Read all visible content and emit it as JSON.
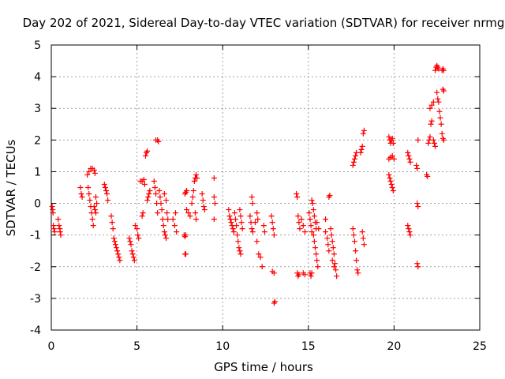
{
  "chart_data": {
    "type": "scatter",
    "title": "Day 202 of 2021, Sidereal Day-to-day VTEC variation (SDTVAR) for receiver nrmg",
    "xlabel": "GPS time / hours",
    "ylabel": "SDTVAR / TECUs",
    "xlim": [
      0,
      25
    ],
    "ylim": [
      -4,
      5
    ],
    "xticks": [
      0,
      5,
      10,
      15,
      20,
      25
    ],
    "yticks": [
      -4,
      -3,
      -2,
      -1,
      0,
      1,
      2,
      3,
      4,
      5
    ],
    "xtick_labels": [
      "0",
      "5",
      "10",
      "15",
      "20",
      "25"
    ],
    "ytick_labels": [
      "-4",
      "-3",
      "-2",
      "-1",
      "0",
      "1",
      "2",
      "3",
      "4",
      "5"
    ],
    "grid": true,
    "marker": "+",
    "series": [
      {
        "name": "SDTVAR",
        "color": "#ff0000",
        "points": [
          [
            0.05,
            -0.1
          ],
          [
            0.08,
            -0.2
          ],
          [
            0.1,
            -0.3
          ],
          [
            0.12,
            -0.7
          ],
          [
            0.15,
            -0.8
          ],
          [
            0.2,
            -0.9
          ],
          [
            0.4,
            -0.5
          ],
          [
            0.45,
            -0.7
          ],
          [
            0.5,
            -0.8
          ],
          [
            0.52,
            -0.9
          ],
          [
            0.55,
            -1.0
          ],
          [
            1.7,
            0.5
          ],
          [
            1.75,
            0.3
          ],
          [
            1.8,
            0.2
          ],
          [
            2.1,
            0.9
          ],
          [
            2.2,
            1.0
          ],
          [
            2.3,
            1.1
          ],
          [
            2.4,
            1.1
          ],
          [
            2.5,
            1.05
          ],
          [
            2.55,
            0.95
          ],
          [
            2.15,
            0.5
          ],
          [
            2.2,
            0.3
          ],
          [
            2.25,
            0.1
          ],
          [
            2.3,
            -0.1
          ],
          [
            2.35,
            -0.3
          ],
          [
            2.4,
            -0.5
          ],
          [
            2.45,
            -0.7
          ],
          [
            2.5,
            -0.1
          ],
          [
            2.55,
            -0.2
          ],
          [
            2.6,
            -0.3
          ],
          [
            2.65,
            0.0
          ],
          [
            2.6,
            0.2
          ],
          [
            3.1,
            0.6
          ],
          [
            3.15,
            0.5
          ],
          [
            3.2,
            0.4
          ],
          [
            3.25,
            0.3
          ],
          [
            3.3,
            0.1
          ],
          [
            3.5,
            -0.4
          ],
          [
            3.55,
            -0.6
          ],
          [
            3.6,
            -0.8
          ],
          [
            3.65,
            -1.1
          ],
          [
            3.7,
            -1.2
          ],
          [
            3.75,
            -1.3
          ],
          [
            3.8,
            -1.4
          ],
          [
            3.85,
            -1.5
          ],
          [
            3.9,
            -1.6
          ],
          [
            3.95,
            -1.7
          ],
          [
            4.0,
            -1.8
          ],
          [
            4.55,
            -1.1
          ],
          [
            4.6,
            -1.2
          ],
          [
            4.65,
            -1.3
          ],
          [
            4.7,
            -1.5
          ],
          [
            4.75,
            -1.6
          ],
          [
            4.8,
            -1.7
          ],
          [
            4.85,
            -1.8
          ],
          [
            4.9,
            -0.7
          ],
          [
            5.0,
            -0.8
          ],
          [
            5.05,
            -1.0
          ],
          [
            5.1,
            -1.1
          ],
          [
            5.2,
            0.7
          ],
          [
            5.3,
            0.7
          ],
          [
            5.4,
            0.75
          ],
          [
            5.45,
            0.6
          ],
          [
            5.3,
            -0.4
          ],
          [
            5.35,
            -0.3
          ],
          [
            5.5,
            1.5
          ],
          [
            5.55,
            1.6
          ],
          [
            5.6,
            1.65
          ],
          [
            5.6,
            0.1
          ],
          [
            5.65,
            0.2
          ],
          [
            5.7,
            0.3
          ],
          [
            5.75,
            0.4
          ],
          [
            6.1,
            2.0
          ],
          [
            6.2,
            2.0
          ],
          [
            6.25,
            1.95
          ],
          [
            6.0,
            0.7
          ],
          [
            6.05,
            0.5
          ],
          [
            6.1,
            0.3
          ],
          [
            6.15,
            0.0
          ],
          [
            6.2,
            -0.3
          ],
          [
            6.3,
            0.4
          ],
          [
            6.35,
            0.2
          ],
          [
            6.4,
            0.0
          ],
          [
            6.45,
            -0.2
          ],
          [
            6.5,
            -0.5
          ],
          [
            6.55,
            -0.7
          ],
          [
            6.6,
            -0.9
          ],
          [
            6.65,
            -1.0
          ],
          [
            6.7,
            -1.1
          ],
          [
            6.6,
            0.3
          ],
          [
            6.7,
            0.1
          ],
          [
            6.75,
            -0.3
          ],
          [
            6.8,
            -0.5
          ],
          [
            7.1,
            -0.5
          ],
          [
            7.2,
            -0.7
          ],
          [
            7.25,
            -0.3
          ],
          [
            7.3,
            -0.9
          ],
          [
            7.8,
            0.3
          ],
          [
            7.85,
            0.35
          ],
          [
            7.9,
            0.4
          ],
          [
            7.75,
            -1.0
          ],
          [
            7.8,
            -1.05
          ],
          [
            7.85,
            -1.0
          ],
          [
            7.8,
            -1.6
          ],
          [
            7.85,
            -1.6
          ],
          [
            7.9,
            -0.2
          ],
          [
            8.0,
            -0.3
          ],
          [
            8.1,
            -0.4
          ],
          [
            8.2,
            0.0
          ],
          [
            8.25,
            0.2
          ],
          [
            8.3,
            0.4
          ],
          [
            8.35,
            0.7
          ],
          [
            8.4,
            0.8
          ],
          [
            8.45,
            0.9
          ],
          [
            8.5,
            0.8
          ],
          [
            8.4,
            -0.3
          ],
          [
            8.45,
            -0.5
          ],
          [
            8.8,
            0.3
          ],
          [
            8.85,
            0.1
          ],
          [
            8.9,
            -0.1
          ],
          [
            8.95,
            -0.2
          ],
          [
            9.5,
            0.8
          ],
          [
            9.5,
            0.2
          ],
          [
            9.55,
            0.0
          ],
          [
            9.5,
            -0.5
          ],
          [
            10.35,
            -0.2
          ],
          [
            10.4,
            -0.4
          ],
          [
            10.45,
            -0.5
          ],
          [
            10.5,
            -0.6
          ],
          [
            10.55,
            -0.7
          ],
          [
            10.6,
            -0.8
          ],
          [
            10.65,
            -0.9
          ],
          [
            10.7,
            -0.3
          ],
          [
            10.75,
            -0.5
          ],
          [
            10.8,
            -0.7
          ],
          [
            10.85,
            -1.0
          ],
          [
            10.9,
            -1.2
          ],
          [
            10.95,
            -1.4
          ],
          [
            11.0,
            -1.5
          ],
          [
            11.05,
            -1.6
          ],
          [
            11.0,
            -0.2
          ],
          [
            11.05,
            -0.4
          ],
          [
            11.1,
            -0.6
          ],
          [
            11.15,
            -0.8
          ],
          [
            11.6,
            -0.4
          ],
          [
            11.65,
            -0.6
          ],
          [
            11.7,
            -0.8
          ],
          [
            11.75,
            -0.9
          ],
          [
            11.7,
            0.2
          ],
          [
            11.75,
            0.0
          ],
          [
            11.9,
            -0.6
          ],
          [
            12.0,
            -1.2
          ],
          [
            12.0,
            -0.3
          ],
          [
            12.05,
            -0.5
          ],
          [
            12.1,
            -1.6
          ],
          [
            12.2,
            -1.7
          ],
          [
            12.4,
            -0.7
          ],
          [
            12.45,
            -0.9
          ],
          [
            12.3,
            -2.0
          ],
          [
            12.85,
            -0.4
          ],
          [
            12.9,
            -0.6
          ],
          [
            12.95,
            -0.8
          ],
          [
            13.0,
            -1.0
          ],
          [
            12.9,
            -2.15
          ],
          [
            13.0,
            -2.2
          ],
          [
            13.0,
            -3.15
          ],
          [
            13.05,
            -3.1
          ],
          [
            14.3,
            0.3
          ],
          [
            14.35,
            0.2
          ],
          [
            14.4,
            -0.4
          ],
          [
            14.45,
            -0.6
          ],
          [
            14.5,
            -0.8
          ],
          [
            14.35,
            -2.2
          ],
          [
            14.4,
            -2.3
          ],
          [
            14.45,
            -2.25
          ],
          [
            14.6,
            -0.5
          ],
          [
            14.7,
            -0.7
          ],
          [
            14.8,
            -0.9
          ],
          [
            14.7,
            -2.2
          ],
          [
            14.8,
            -2.25
          ],
          [
            15.05,
            -0.3
          ],
          [
            15.1,
            -0.5
          ],
          [
            15.15,
            -0.7
          ],
          [
            15.2,
            -0.9
          ],
          [
            15.1,
            -2.2
          ],
          [
            15.15,
            -2.3
          ],
          [
            15.2,
            -2.2
          ],
          [
            15.2,
            0.1
          ],
          [
            15.25,
            0.0
          ],
          [
            15.3,
            -0.2
          ],
          [
            15.35,
            -0.4
          ],
          [
            15.4,
            -0.6
          ],
          [
            15.45,
            -0.8
          ],
          [
            15.3,
            -1.0
          ],
          [
            15.35,
            -1.2
          ],
          [
            15.4,
            -1.4
          ],
          [
            15.45,
            -1.6
          ],
          [
            15.5,
            -1.8
          ],
          [
            15.55,
            -2.0
          ],
          [
            15.5,
            -0.6
          ],
          [
            15.6,
            -0.8
          ],
          [
            16.0,
            -0.5
          ],
          [
            16.0,
            -0.9
          ],
          [
            16.1,
            -1.1
          ],
          [
            16.15,
            -1.3
          ],
          [
            16.2,
            -1.5
          ],
          [
            16.2,
            0.2
          ],
          [
            16.25,
            0.25
          ],
          [
            16.3,
            -0.8
          ],
          [
            16.35,
            -1.0
          ],
          [
            16.4,
            -1.2
          ],
          [
            16.45,
            -1.4
          ],
          [
            16.5,
            -1.6
          ],
          [
            16.55,
            -1.9
          ],
          [
            16.6,
            -2.1
          ],
          [
            16.65,
            -2.3
          ],
          [
            16.4,
            -1.8
          ],
          [
            16.5,
            -2.0
          ],
          [
            17.6,
            1.2
          ],
          [
            17.65,
            1.3
          ],
          [
            17.7,
            1.4
          ],
          [
            17.75,
            1.5
          ],
          [
            17.8,
            1.6
          ],
          [
            17.6,
            -0.8
          ],
          [
            17.65,
            -1.0
          ],
          [
            17.7,
            -1.2
          ],
          [
            17.75,
            -1.5
          ],
          [
            17.8,
            -1.8
          ],
          [
            17.85,
            -2.1
          ],
          [
            17.9,
            -2.2
          ],
          [
            18.05,
            1.6
          ],
          [
            18.1,
            1.7
          ],
          [
            18.15,
            1.8
          ],
          [
            18.2,
            2.2
          ],
          [
            18.25,
            2.3
          ],
          [
            18.15,
            -0.9
          ],
          [
            18.2,
            -1.1
          ],
          [
            18.25,
            -1.3
          ],
          [
            19.7,
            2.1
          ],
          [
            19.75,
            2.0
          ],
          [
            19.8,
            1.9
          ],
          [
            19.85,
            2.0
          ],
          [
            19.9,
            2.05
          ],
          [
            19.95,
            1.9
          ],
          [
            19.7,
            1.4
          ],
          [
            19.8,
            1.45
          ],
          [
            19.9,
            1.5
          ],
          [
            20.0,
            1.4
          ],
          [
            19.7,
            0.9
          ],
          [
            19.75,
            0.8
          ],
          [
            19.8,
            0.7
          ],
          [
            19.85,
            0.6
          ],
          [
            19.9,
            0.5
          ],
          [
            19.95,
            0.4
          ],
          [
            20.8,
            1.6
          ],
          [
            20.85,
            1.5
          ],
          [
            20.9,
            1.4
          ],
          [
            20.95,
            1.3
          ],
          [
            20.8,
            -0.7
          ],
          [
            20.85,
            -0.8
          ],
          [
            20.9,
            -0.9
          ],
          [
            20.95,
            -1.0
          ],
          [
            21.3,
            1.2
          ],
          [
            21.35,
            1.1
          ],
          [
            21.4,
            2.0
          ],
          [
            21.35,
            0.0
          ],
          [
            21.4,
            -0.1
          ],
          [
            21.35,
            -1.9
          ],
          [
            21.4,
            -2.0
          ],
          [
            21.9,
            0.9
          ],
          [
            21.95,
            0.85
          ],
          [
            22.0,
            1.9
          ],
          [
            22.05,
            2.0
          ],
          [
            22.1,
            2.1
          ],
          [
            22.15,
            2.5
          ],
          [
            22.2,
            2.6
          ],
          [
            22.1,
            3.0
          ],
          [
            22.2,
            3.1
          ],
          [
            22.3,
            3.2
          ],
          [
            22.3,
            2.0
          ],
          [
            22.35,
            1.9
          ],
          [
            22.4,
            1.8
          ],
          [
            22.4,
            4.2
          ],
          [
            22.45,
            4.3
          ],
          [
            22.5,
            4.35
          ],
          [
            22.55,
            4.3
          ],
          [
            22.6,
            4.25
          ],
          [
            22.5,
            3.5
          ],
          [
            22.55,
            3.3
          ],
          [
            22.6,
            3.2
          ],
          [
            22.65,
            2.9
          ],
          [
            22.7,
            2.7
          ],
          [
            22.75,
            2.5
          ],
          [
            22.8,
            2.2
          ],
          [
            22.85,
            2.05
          ],
          [
            22.9,
            2.0
          ],
          [
            22.8,
            4.2
          ],
          [
            22.85,
            4.25
          ],
          [
            22.9,
            4.2
          ],
          [
            22.85,
            3.6
          ],
          [
            22.9,
            3.55
          ]
        ]
      }
    ]
  }
}
